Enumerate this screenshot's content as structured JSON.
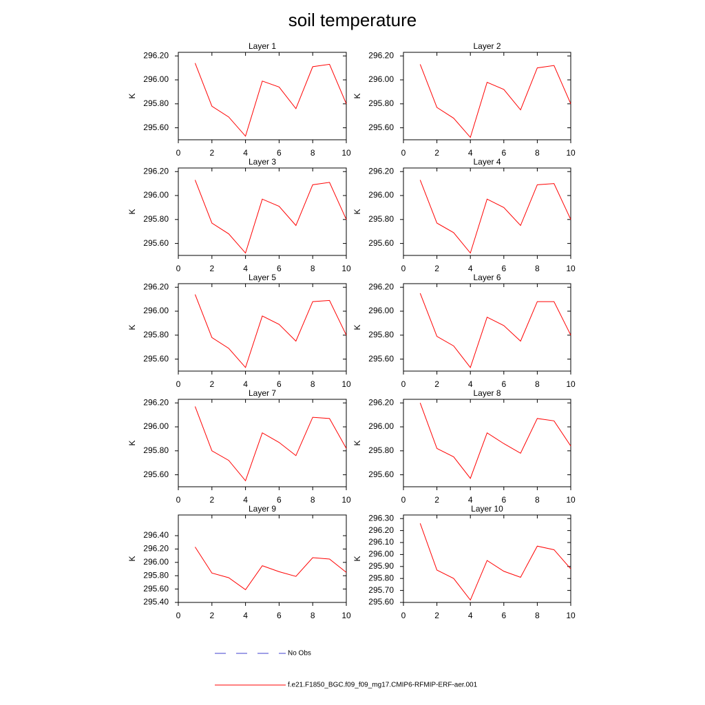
{
  "title": "soil temperature",
  "legend": [
    {
      "label": "No Obs",
      "color": "#3f3fcf",
      "dashed": true
    },
    {
      "label": "f.e21.F1850_BGC.f09_f09_mg17.CMIP6-RFMIP-ERF-aer.001",
      "color": "#ff0000",
      "dashed": false
    }
  ],
  "chart_data": [
    {
      "type": "line",
      "title": "Layer 1",
      "ylabel": "K",
      "x": [
        1,
        2,
        3,
        4,
        5,
        6,
        7,
        8,
        9,
        10
      ],
      "values": [
        296.14,
        295.78,
        295.69,
        295.53,
        295.99,
        295.94,
        295.76,
        296.11,
        296.13,
        295.8
      ],
      "color": "#ff0000",
      "xlim": [
        0,
        10
      ],
      "xticks": [
        0,
        2,
        4,
        6,
        8,
        10
      ],
      "ylim": [
        295.5,
        296.23
      ],
      "yticks": [
        {
          "value": 295.6,
          "label": "295.60"
        },
        {
          "value": 295.8,
          "label": "295.80"
        },
        {
          "value": 296.0,
          "label": "296.00"
        },
        {
          "value": 296.2,
          "label": "296.20"
        }
      ]
    },
    {
      "type": "line",
      "title": "Layer 2",
      "ylabel": "K",
      "x": [
        1,
        2,
        3,
        4,
        5,
        6,
        7,
        8,
        9,
        10
      ],
      "values": [
        296.13,
        295.77,
        295.68,
        295.52,
        295.98,
        295.92,
        295.75,
        296.1,
        296.12,
        295.8
      ],
      "color": "#ff0000",
      "xlim": [
        0,
        10
      ],
      "xticks": [
        0,
        2,
        4,
        6,
        8,
        10
      ],
      "ylim": [
        295.5,
        296.23
      ],
      "yticks": [
        {
          "value": 295.6,
          "label": "295.60"
        },
        {
          "value": 295.8,
          "label": "295.80"
        },
        {
          "value": 296.0,
          "label": "296.00"
        },
        {
          "value": 296.2,
          "label": "296.20"
        }
      ]
    },
    {
      "type": "line",
      "title": "Layer 3",
      "ylabel": "K",
      "x": [
        1,
        2,
        3,
        4,
        5,
        6,
        7,
        8,
        9,
        10
      ],
      "values": [
        296.13,
        295.77,
        295.68,
        295.52,
        295.97,
        295.91,
        295.75,
        296.09,
        296.11,
        295.8
      ],
      "color": "#ff0000",
      "xlim": [
        0,
        10
      ],
      "xticks": [
        0,
        2,
        4,
        6,
        8,
        10
      ],
      "ylim": [
        295.5,
        296.23
      ],
      "yticks": [
        {
          "value": 295.6,
          "label": "295.60"
        },
        {
          "value": 295.8,
          "label": "295.80"
        },
        {
          "value": 296.0,
          "label": "296.00"
        },
        {
          "value": 296.2,
          "label": "296.20"
        }
      ]
    },
    {
      "type": "line",
      "title": "Layer 4",
      "ylabel": "K",
      "x": [
        1,
        2,
        3,
        4,
        5,
        6,
        7,
        8,
        9,
        10
      ],
      "values": [
        296.13,
        295.77,
        295.69,
        295.52,
        295.97,
        295.9,
        295.75,
        296.09,
        296.1,
        295.8
      ],
      "color": "#ff0000",
      "xlim": [
        0,
        10
      ],
      "xticks": [
        0,
        2,
        4,
        6,
        8,
        10
      ],
      "ylim": [
        295.5,
        296.23
      ],
      "yticks": [
        {
          "value": 295.6,
          "label": "295.60"
        },
        {
          "value": 295.8,
          "label": "295.80"
        },
        {
          "value": 296.0,
          "label": "296.00"
        },
        {
          "value": 296.2,
          "label": "296.20"
        }
      ]
    },
    {
      "type": "line",
      "title": "Layer 5",
      "ylabel": "K",
      "x": [
        1,
        2,
        3,
        4,
        5,
        6,
        7,
        8,
        9,
        10
      ],
      "values": [
        296.14,
        295.78,
        295.69,
        295.53,
        295.96,
        295.89,
        295.75,
        296.08,
        296.09,
        295.8
      ],
      "color": "#ff0000",
      "xlim": [
        0,
        10
      ],
      "xticks": [
        0,
        2,
        4,
        6,
        8,
        10
      ],
      "ylim": [
        295.5,
        296.23
      ],
      "yticks": [
        {
          "value": 295.6,
          "label": "295.60"
        },
        {
          "value": 295.8,
          "label": "295.80"
        },
        {
          "value": 296.0,
          "label": "296.00"
        },
        {
          "value": 296.2,
          "label": "296.20"
        }
      ]
    },
    {
      "type": "line",
      "title": "Layer 6",
      "ylabel": "K",
      "x": [
        1,
        2,
        3,
        4,
        5,
        6,
        7,
        8,
        9,
        10
      ],
      "values": [
        296.15,
        295.79,
        295.71,
        295.53,
        295.95,
        295.88,
        295.75,
        296.08,
        296.08,
        295.8
      ],
      "color": "#ff0000",
      "xlim": [
        0,
        10
      ],
      "xticks": [
        0,
        2,
        4,
        6,
        8,
        10
      ],
      "ylim": [
        295.5,
        296.23
      ],
      "yticks": [
        {
          "value": 295.6,
          "label": "295.60"
        },
        {
          "value": 295.8,
          "label": "295.80"
        },
        {
          "value": 296.0,
          "label": "296.00"
        },
        {
          "value": 296.2,
          "label": "296.20"
        }
      ]
    },
    {
      "type": "line",
      "title": "Layer 7",
      "ylabel": "K",
      "x": [
        1,
        2,
        3,
        4,
        5,
        6,
        7,
        8,
        9,
        10
      ],
      "values": [
        296.17,
        295.8,
        295.72,
        295.55,
        295.95,
        295.87,
        295.76,
        296.08,
        296.07,
        295.82
      ],
      "color": "#ff0000",
      "xlim": [
        0,
        10
      ],
      "xticks": [
        0,
        2,
        4,
        6,
        8,
        10
      ],
      "ylim": [
        295.5,
        296.23
      ],
      "yticks": [
        {
          "value": 295.6,
          "label": "295.60"
        },
        {
          "value": 295.8,
          "label": "295.80"
        },
        {
          "value": 296.0,
          "label": "296.00"
        },
        {
          "value": 296.2,
          "label": "296.20"
        }
      ]
    },
    {
      "type": "line",
      "title": "Layer 8",
      "ylabel": "K",
      "x": [
        1,
        2,
        3,
        4,
        5,
        6,
        7,
        8,
        9,
        10
      ],
      "values": [
        296.2,
        295.82,
        295.75,
        295.57,
        295.95,
        295.86,
        295.78,
        296.07,
        296.05,
        295.84
      ],
      "color": "#ff0000",
      "xlim": [
        0,
        10
      ],
      "xticks": [
        0,
        2,
        4,
        6,
        8,
        10
      ],
      "ylim": [
        295.5,
        296.23
      ],
      "yticks": [
        {
          "value": 295.6,
          "label": "295.60"
        },
        {
          "value": 295.8,
          "label": "295.80"
        },
        {
          "value": 296.0,
          "label": "296.00"
        },
        {
          "value": 296.2,
          "label": "296.20"
        }
      ]
    },
    {
      "type": "line",
      "title": "Layer 9",
      "ylabel": "K",
      "x": [
        1,
        2,
        3,
        4,
        5,
        6,
        7,
        8,
        9,
        10
      ],
      "values": [
        296.23,
        295.84,
        295.77,
        295.59,
        295.95,
        295.86,
        295.79,
        296.07,
        296.05,
        295.85
      ],
      "color": "#ff0000",
      "xlim": [
        0,
        10
      ],
      "xticks": [
        0,
        2,
        4,
        6,
        8,
        10
      ],
      "ylim": [
        295.4,
        296.71
      ],
      "yticks": [
        {
          "value": 295.4,
          "label": "295.40"
        },
        {
          "value": 295.6,
          "label": "295.60"
        },
        {
          "value": 295.8,
          "label": "295.80"
        },
        {
          "value": 296.0,
          "label": "296.00"
        },
        {
          "value": 296.2,
          "label": "296.20"
        },
        {
          "value": 296.4,
          "label": "296.40"
        }
      ]
    },
    {
      "type": "line",
      "title": "Layer 10",
      "ylabel": "K",
      "x": [
        1,
        2,
        3,
        4,
        5,
        6,
        7,
        8,
        9,
        10
      ],
      "values": [
        296.26,
        295.87,
        295.8,
        295.62,
        295.95,
        295.86,
        295.81,
        296.07,
        296.04,
        295.88
      ],
      "color": "#ff0000",
      "xlim": [
        0,
        10
      ],
      "xticks": [
        0,
        2,
        4,
        6,
        8,
        10
      ],
      "ylim": [
        295.6,
        296.33
      ],
      "yticks": [
        {
          "value": 295.6,
          "label": "295.60"
        },
        {
          "value": 295.7,
          "label": "295.70"
        },
        {
          "value": 295.8,
          "label": "295.80"
        },
        {
          "value": 295.9,
          "label": "295.90"
        },
        {
          "value": 296.0,
          "label": "296.00"
        },
        {
          "value": 296.1,
          "label": "296.10"
        },
        {
          "value": 296.2,
          "label": "296.20"
        },
        {
          "value": 296.3,
          "label": "296.30"
        }
      ]
    }
  ]
}
